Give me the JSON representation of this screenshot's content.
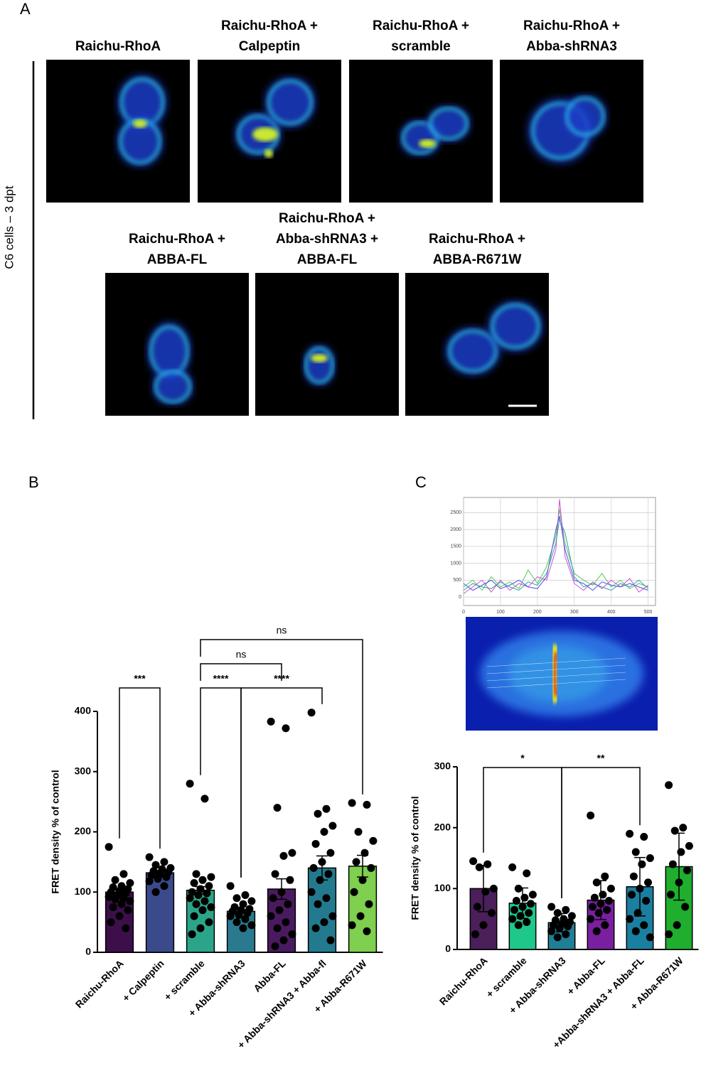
{
  "panel_labels": [
    "A",
    "B",
    "C"
  ],
  "panel_a": {
    "side_label": "C6 cells – 3 dpt",
    "images": [
      {
        "title": [
          "Raichu-RhoA"
        ]
      },
      {
        "title": [
          "Raichu-RhoA +",
          "Calpeptin"
        ]
      },
      {
        "title": [
          "Raichu-RhoA +",
          "scramble"
        ]
      },
      {
        "title": [
          "Raichu-RhoA +",
          "Abba-shRNA3"
        ]
      },
      {
        "title": [
          "Raichu-RhoA +",
          "ABBA-FL"
        ]
      },
      {
        "title": [
          "Raichu-RhoA +",
          "Abba-shRNA3 +",
          "ABBA-FL"
        ]
      },
      {
        "title": [
          "Raichu-RhoA +",
          "ABBA-R671W"
        ]
      }
    ]
  },
  "chart_data": [
    {
      "type": "bar",
      "y_label": "FRET density % of control",
      "categories": [
        "Raichu-RhoA",
        "+ Calpeptin",
        "+ scramble",
        "+ Abba-shRNA3",
        "Abba-FL",
        "+ Abba-shRNA3 + Abba-fl",
        "+ Abba-R671W"
      ],
      "values": [
        100,
        132,
        103,
        68,
        105,
        140,
        143
      ],
      "errors": [
        4,
        4,
        6,
        3,
        17,
        20,
        18
      ],
      "colors": [
        "#3d0f4a",
        "#3b4a8a",
        "#2aa58a",
        "#2a7a8f",
        "#4a1a60",
        "#237a8f",
        "#7ed04e"
      ],
      "points": [
        [
          175,
          130,
          120,
          115,
          110,
          108,
          105,
          102,
          100,
          98,
          95,
          92,
          90,
          88,
          85,
          80,
          75,
          70,
          60,
          50,
          40
        ],
        [
          158,
          150,
          145,
          140,
          138,
          135,
          133,
          130,
          128,
          125,
          122,
          118,
          110,
          100
        ],
        [
          280,
          255,
          130,
          125,
          120,
          115,
          110,
          105,
          100,
          98,
          95,
          90,
          85,
          80,
          75,
          70,
          60,
          50,
          40,
          30
        ],
        [
          110,
          95,
          90,
          85,
          80,
          75,
          72,
          70,
          68,
          65,
          62,
          60,
          55,
          50,
          45,
          40
        ],
        [
          383,
          372,
          240,
          165,
          160,
          130,
          120,
          100,
          90,
          80,
          70,
          60,
          50,
          40,
          30,
          20,
          10
        ],
        [
          398,
          238,
          230,
          210,
          200,
          180,
          165,
          150,
          140,
          130,
          120,
          100,
          90,
          80,
          60,
          50,
          40,
          20
        ],
        [
          248,
          245,
          200,
          185,
          165,
          150,
          140,
          120,
          100,
          80,
          60,
          45,
          35
        ]
      ],
      "brackets": [
        {
          "from": 0,
          "to": 1,
          "label": "***"
        },
        {
          "from": 2,
          "to": 3,
          "label": "****"
        },
        {
          "from": 3,
          "to": 5,
          "label": "****"
        },
        {
          "from": 2,
          "to": 4,
          "label": "ns"
        },
        {
          "from": 2,
          "to": 6,
          "label": "ns"
        }
      ],
      "ylim": [
        0,
        400
      ],
      "yticks": [
        0,
        100,
        200,
        300,
        400
      ]
    },
    {
      "type": "line",
      "x": [
        0,
        25,
        50,
        75,
        100,
        125,
        150,
        175,
        200,
        225,
        250,
        260,
        275,
        300,
        325,
        350,
        375,
        400,
        425,
        450,
        475,
        500
      ],
      "series": [
        {
          "color": "#55c855",
          "values": [
            300,
            500,
            200,
            600,
            300,
            450,
            250,
            800,
            400,
            900,
            1800,
            2600,
            1600,
            700,
            500,
            350,
            700,
            300,
            500,
            250,
            400,
            300
          ]
        },
        {
          "color": "#d050d0",
          "values": [
            100,
            300,
            500,
            150,
            500,
            200,
            400,
            300,
            600,
            500,
            1400,
            2900,
            1200,
            400,
            200,
            450,
            250,
            500,
            300,
            550,
            150,
            350
          ]
        },
        {
          "color": "#5050f0",
          "values": [
            400,
            200,
            350,
            500,
            250,
            350,
            500,
            300,
            250,
            600,
            2000,
            2400,
            1400,
            500,
            400,
            200,
            450,
            350,
            300,
            400,
            300,
            200
          ]
        },
        {
          "color": "#30a0a0",
          "values": [
            200,
            400,
            300,
            250,
            450,
            300,
            200,
            450,
            350,
            700,
            1600,
            2300,
            1900,
            600,
            300,
            400,
            300,
            200,
            400,
            300,
            500,
            250
          ]
        }
      ],
      "xlim": [
        0,
        520
      ],
      "xticks": [
        0,
        100,
        200,
        300,
        400,
        500
      ],
      "ylim": [
        -250,
        2950
      ],
      "yticks": [
        0,
        500,
        1000,
        1500,
        2000,
        2500
      ],
      "grid": true
    },
    {
      "type": "bar",
      "y_label": "FRET density % of control",
      "categories": [
        "Raichu-RhoA",
        "+ scramble",
        "+ Abba-shRNA3",
        "+ Abba-FL",
        "+Abba-shRNA3 + Abba-FL",
        "+ Abba-R671W"
      ],
      "values": [
        100,
        76,
        44,
        81,
        103,
        136
      ],
      "errors": [
        38,
        25,
        15,
        32,
        48,
        55
      ],
      "colors": [
        "#4a1f5a",
        "#1ec88a",
        "#1f7f96",
        "#7a1fa0",
        "#1a7fa0",
        "#1fae2e"
      ],
      "points": [
        [
          145,
          140,
          135,
          100,
          95,
          70,
          60,
          40,
          25
        ],
        [
          135,
          125,
          100,
          90,
          85,
          80,
          75,
          70,
          65,
          60,
          55,
          50,
          45,
          40
        ],
        [
          70,
          65,
          60,
          55,
          50,
          48,
          45,
          42,
          40,
          38,
          35,
          30,
          25,
          20
        ],
        [
          220,
          120,
          110,
          100,
          90,
          85,
          80,
          75,
          70,
          65,
          60,
          50,
          40,
          30
        ],
        [
          190,
          185,
          160,
          150,
          140,
          120,
          110,
          100,
          90,
          80,
          60,
          50,
          40,
          30,
          20
        ],
        [
          270,
          200,
          195,
          170,
          160,
          140,
          130,
          110,
          90,
          70,
          40,
          25
        ]
      ],
      "brackets": [
        {
          "from": 0,
          "to": 2,
          "label": "*"
        },
        {
          "from": 2,
          "to": 4,
          "label": "**"
        }
      ],
      "ylim": [
        0,
        300
      ],
      "yticks": [
        0,
        100,
        200,
        300
      ]
    }
  ]
}
